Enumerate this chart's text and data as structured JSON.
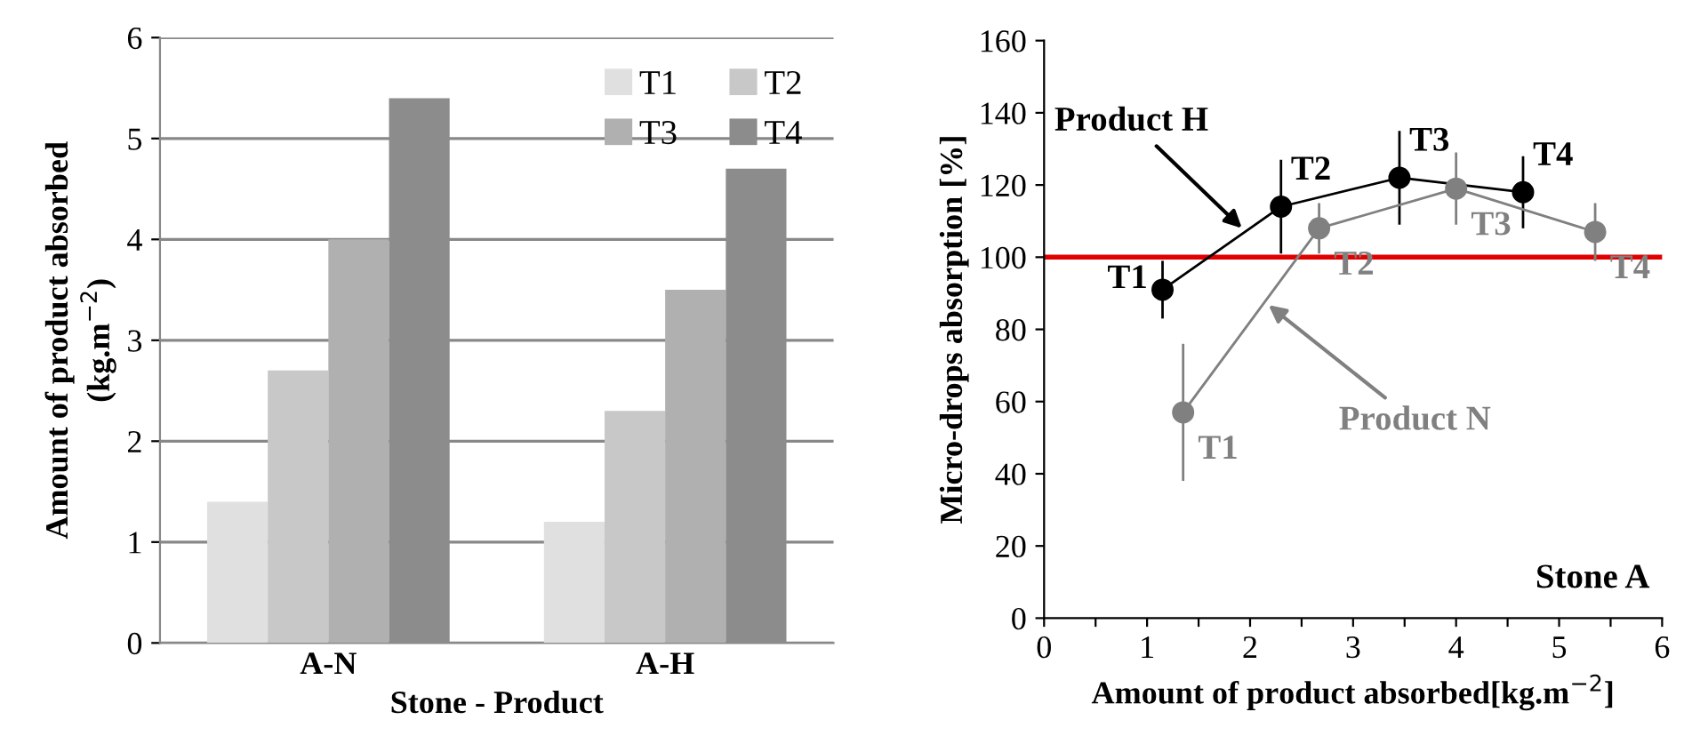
{
  "chart_data": [
    {
      "type": "bar",
      "xlabel": "Stone - Product",
      "ylabel": "Amount of product absorbed\n(kg.m$^{−2}$)",
      "categories": [
        "A-N",
        "A-H"
      ],
      "series": [
        {
          "name": "T1",
          "color": "#e0e0e0",
          "values": [
            1.4,
            1.2
          ]
        },
        {
          "name": "T2",
          "color": "#c8c8c8",
          "values": [
            2.7,
            2.3
          ]
        },
        {
          "name": "T3",
          "color": "#b0b0b0",
          "values": [
            4.0,
            3.5
          ]
        },
        {
          "name": "T4",
          "color": "#8c8c8c",
          "values": [
            5.4,
            4.7
          ]
        }
      ],
      "ylim": [
        0,
        6
      ],
      "yticks": [
        0,
        1,
        2,
        3,
        4,
        5,
        6
      ],
      "grid": "y",
      "legend": "top right"
    },
    {
      "type": "line",
      "xlabel": "Amount of product absorbed[kg.m$^{−2}$]",
      "ylabel": "Micro-drops absorption [%]",
      "series": [
        {
          "name": "Product H",
          "color": "#000000",
          "x": [
            1.15,
            2.3,
            3.45,
            4.65
          ],
          "values": [
            91,
            114,
            122,
            118
          ],
          "errors": [
            8,
            13,
            13,
            10
          ],
          "value_labels": [
            "T1",
            "T2",
            "T3",
            "T4"
          ]
        },
        {
          "name": "Product N",
          "color": "#808080",
          "x": [
            1.35,
            2.67,
            4.0,
            5.35
          ],
          "values": [
            57,
            108,
            119,
            107
          ],
          "errors": [
            19,
            7,
            10,
            8
          ],
          "value_labels": [
            "T1",
            "T2",
            "T3",
            "T4"
          ]
        }
      ],
      "xlim": [
        0,
        6
      ],
      "xticks": [
        0,
        {
          "value": 0.5,
          "label": null
        },
        1,
        {
          "value": 1.5,
          "label": null
        },
        2,
        {
          "value": 2.5,
          "label": null
        },
        3,
        {
          "value": 3.5,
          "label": null
        },
        4,
        {
          "value": 4.5,
          "label": null
        },
        5,
        {
          "value": 5.5,
          "label": null
        },
        6
      ],
      "ylim": [
        0,
        160
      ],
      "yticks": [
        0,
        20,
        40,
        60,
        80,
        100,
        120,
        140,
        160
      ],
      "ref_lines": [
        {
          "axis": "y",
          "value": 100,
          "color": "#e00000"
        }
      ],
      "annotations": [
        "Stone A"
      ],
      "marker": "circle",
      "line_style": "solid",
      "legend": false,
      "grid": false
    }
  ]
}
